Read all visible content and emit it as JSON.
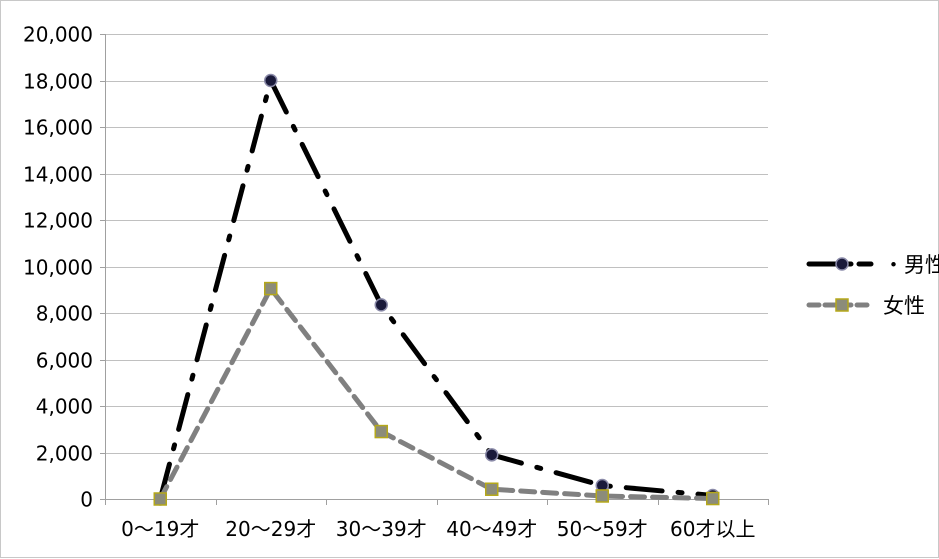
{
  "chart_data": {
    "type": "line",
    "categories": [
      "0～19才",
      "20～29才",
      "30～39才",
      "40～49才",
      "50～59才",
      "60才以上"
    ],
    "series": [
      {
        "name": "・男性",
        "values": [
          0,
          18000,
          8350,
          1900,
          580,
          150
        ],
        "color": "#000000",
        "line_style": "dash-dot",
        "marker": "circle",
        "marker_fill": "#1a1a3a"
      },
      {
        "name": "女性",
        "values": [
          0,
          9050,
          2900,
          420,
          130,
          20
        ],
        "color": "#808080",
        "line_style": "dashed",
        "marker": "square",
        "marker_fill": "#8c8c7a"
      }
    ],
    "ylim": [
      0,
      20000
    ],
    "yticks": [
      0,
      2000,
      4000,
      6000,
      8000,
      10000,
      12000,
      14000,
      16000,
      18000,
      20000
    ],
    "ytick_labels": [
      "0",
      "2,000",
      "4,000",
      "6,000",
      "8,000",
      "10,000",
      "12,000",
      "14,000",
      "16,000",
      "18,000",
      "20,000"
    ],
    "grid": true,
    "legend": "right",
    "title": "",
    "xlabel": "",
    "ylabel": ""
  }
}
